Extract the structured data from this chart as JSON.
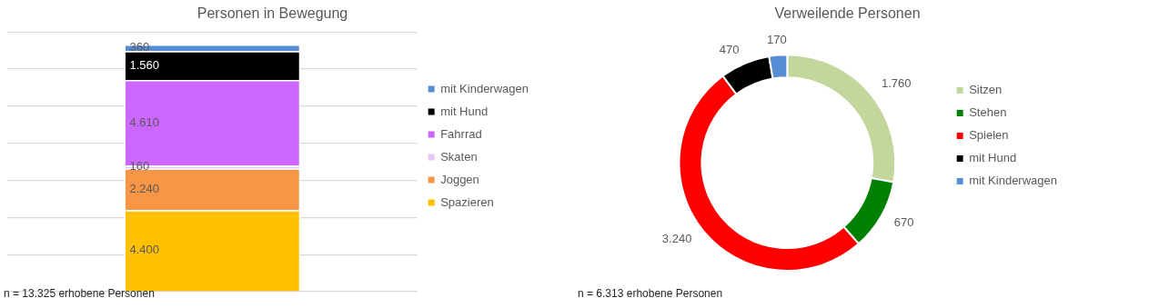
{
  "chart_data": [
    {
      "type": "bar",
      "title": "Personen in Bewegung",
      "categories": [
        null
      ],
      "stacked": true,
      "series": [
        {
          "name": "Spazieren",
          "color": "#ffc000",
          "values": [
            4400
          ],
          "value_labels": [
            "4.400"
          ]
        },
        {
          "name": "Joggen",
          "color": "#f79646",
          "values": [
            2240
          ],
          "value_labels": [
            "2.240"
          ]
        },
        {
          "name": "Skaten",
          "color": "#e6c6f5",
          "values": [
            160
          ],
          "value_labels": [
            "160"
          ]
        },
        {
          "name": "Fahrrad",
          "color": "#cc66ff",
          "values": [
            4610
          ],
          "value_labels": [
            "4.610"
          ]
        },
        {
          "name": "mit Hund",
          "color": "#000000",
          "values": [
            1560
          ],
          "value_labels": [
            "1.560"
          ]
        },
        {
          "name": "mit Kinderwagen",
          "color": "#558ed5",
          "values": [
            360
          ],
          "value_labels": [
            "360"
          ]
        }
      ],
      "tick_labels": false,
      "grid": "y",
      "legend": "right",
      "annotations": [
        "n = 13.325 erhobene Personen"
      ]
    },
    {
      "type": "donut",
      "title": "Verweilende Personen",
      "categories": [
        "Sitzen",
        "Stehen",
        "Spielen",
        "mit Hund",
        "mit Kinderwagen"
      ],
      "values": [
        1760,
        670,
        3240,
        470,
        170
      ],
      "value_labels": [
        "1.760",
        "670",
        "3.240",
        "470",
        "170"
      ],
      "colors": [
        "#c3d69b",
        "#008000",
        "#ff0000",
        "#000000",
        "#558ed5"
      ],
      "legend": "right",
      "annotations": [
        "n = 6.313 erhobene Personen"
      ]
    }
  ]
}
